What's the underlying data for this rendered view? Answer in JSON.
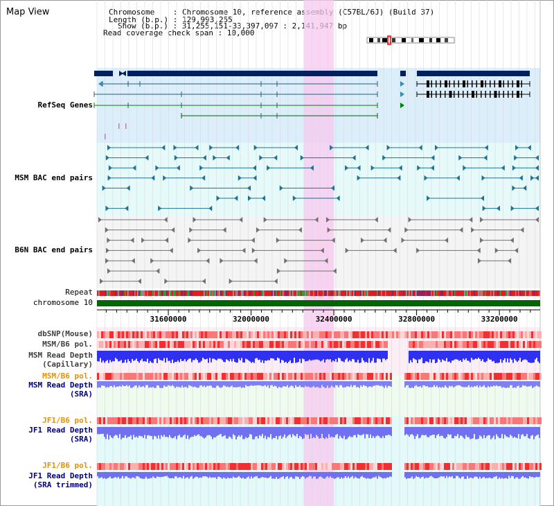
{
  "title": "Map View",
  "header": {
    "chromosome": "Chromosome    : Chromosome 10, reference assembly (C57BL/6J) (Build 37)",
    "length": "Length (b.p.) : 129,993,255",
    "show": "Show (b.p.) : 31,255,151-33,397,097 : 2,141,947 bp",
    "coverage": "Read coverage check span : 10,000"
  },
  "tracks": {
    "refseq": "RefSeq Genes",
    "msm_bac": "MSM BAC end pairs",
    "b6n_bac": "B6N BAC end pairs",
    "repeat": "Repeat",
    "chromosome": "chromosome 10",
    "dbsnp": "dbSNP(Mouse)",
    "msm_b6_pol_1": "MSM/B6 pol.",
    "msm_read_depth_cap_1": "MSM Read Depth",
    "msm_read_depth_cap_2": "(Capillary)",
    "msm_b6_pol_2": "MSM/B6 pol.",
    "msm_read_depth_sra_1": "MSM Read Depth",
    "msm_read_depth_sra_2": "(SRA)",
    "jf1_b6_pol_1": "JF1/B6 pol.",
    "jf1_read_depth_sra_1": "JF1 Read Depth",
    "jf1_read_depth_sra_2": "(SRA)",
    "jf1_b6_pol_2": "JF1/B6 pol.",
    "jf1_read_depth_trim_1": "JF1 Read Depth",
    "jf1_read_depth_trim_2": "(SRA trimmed)"
  },
  "axis": {
    "ticks": [
      31600000,
      32000000,
      32400000,
      32800000,
      33200000
    ]
  },
  "view": {
    "start": 31255151,
    "end": 33397097,
    "highlight_start": 32255000,
    "highlight_end": 32400000
  },
  "colors": {
    "refseq_bg": "#dceefa",
    "bac_bg": "#e6fafa",
    "highlight": "#f8c8f0",
    "refseq_label": "#000080",
    "bac_label": "#006080",
    "b6n_label": "#606060",
    "orange_label": "#e89000",
    "blue_label": "#000080",
    "chromosome_bar": "#006600",
    "gene_dark": "#002060",
    "bac_msm": "#207090",
    "bac_b6n": "#707070",
    "depth_capillary": "#3030f0",
    "depth_sra": "#8080f0",
    "snp_red": "#f04040"
  }
}
